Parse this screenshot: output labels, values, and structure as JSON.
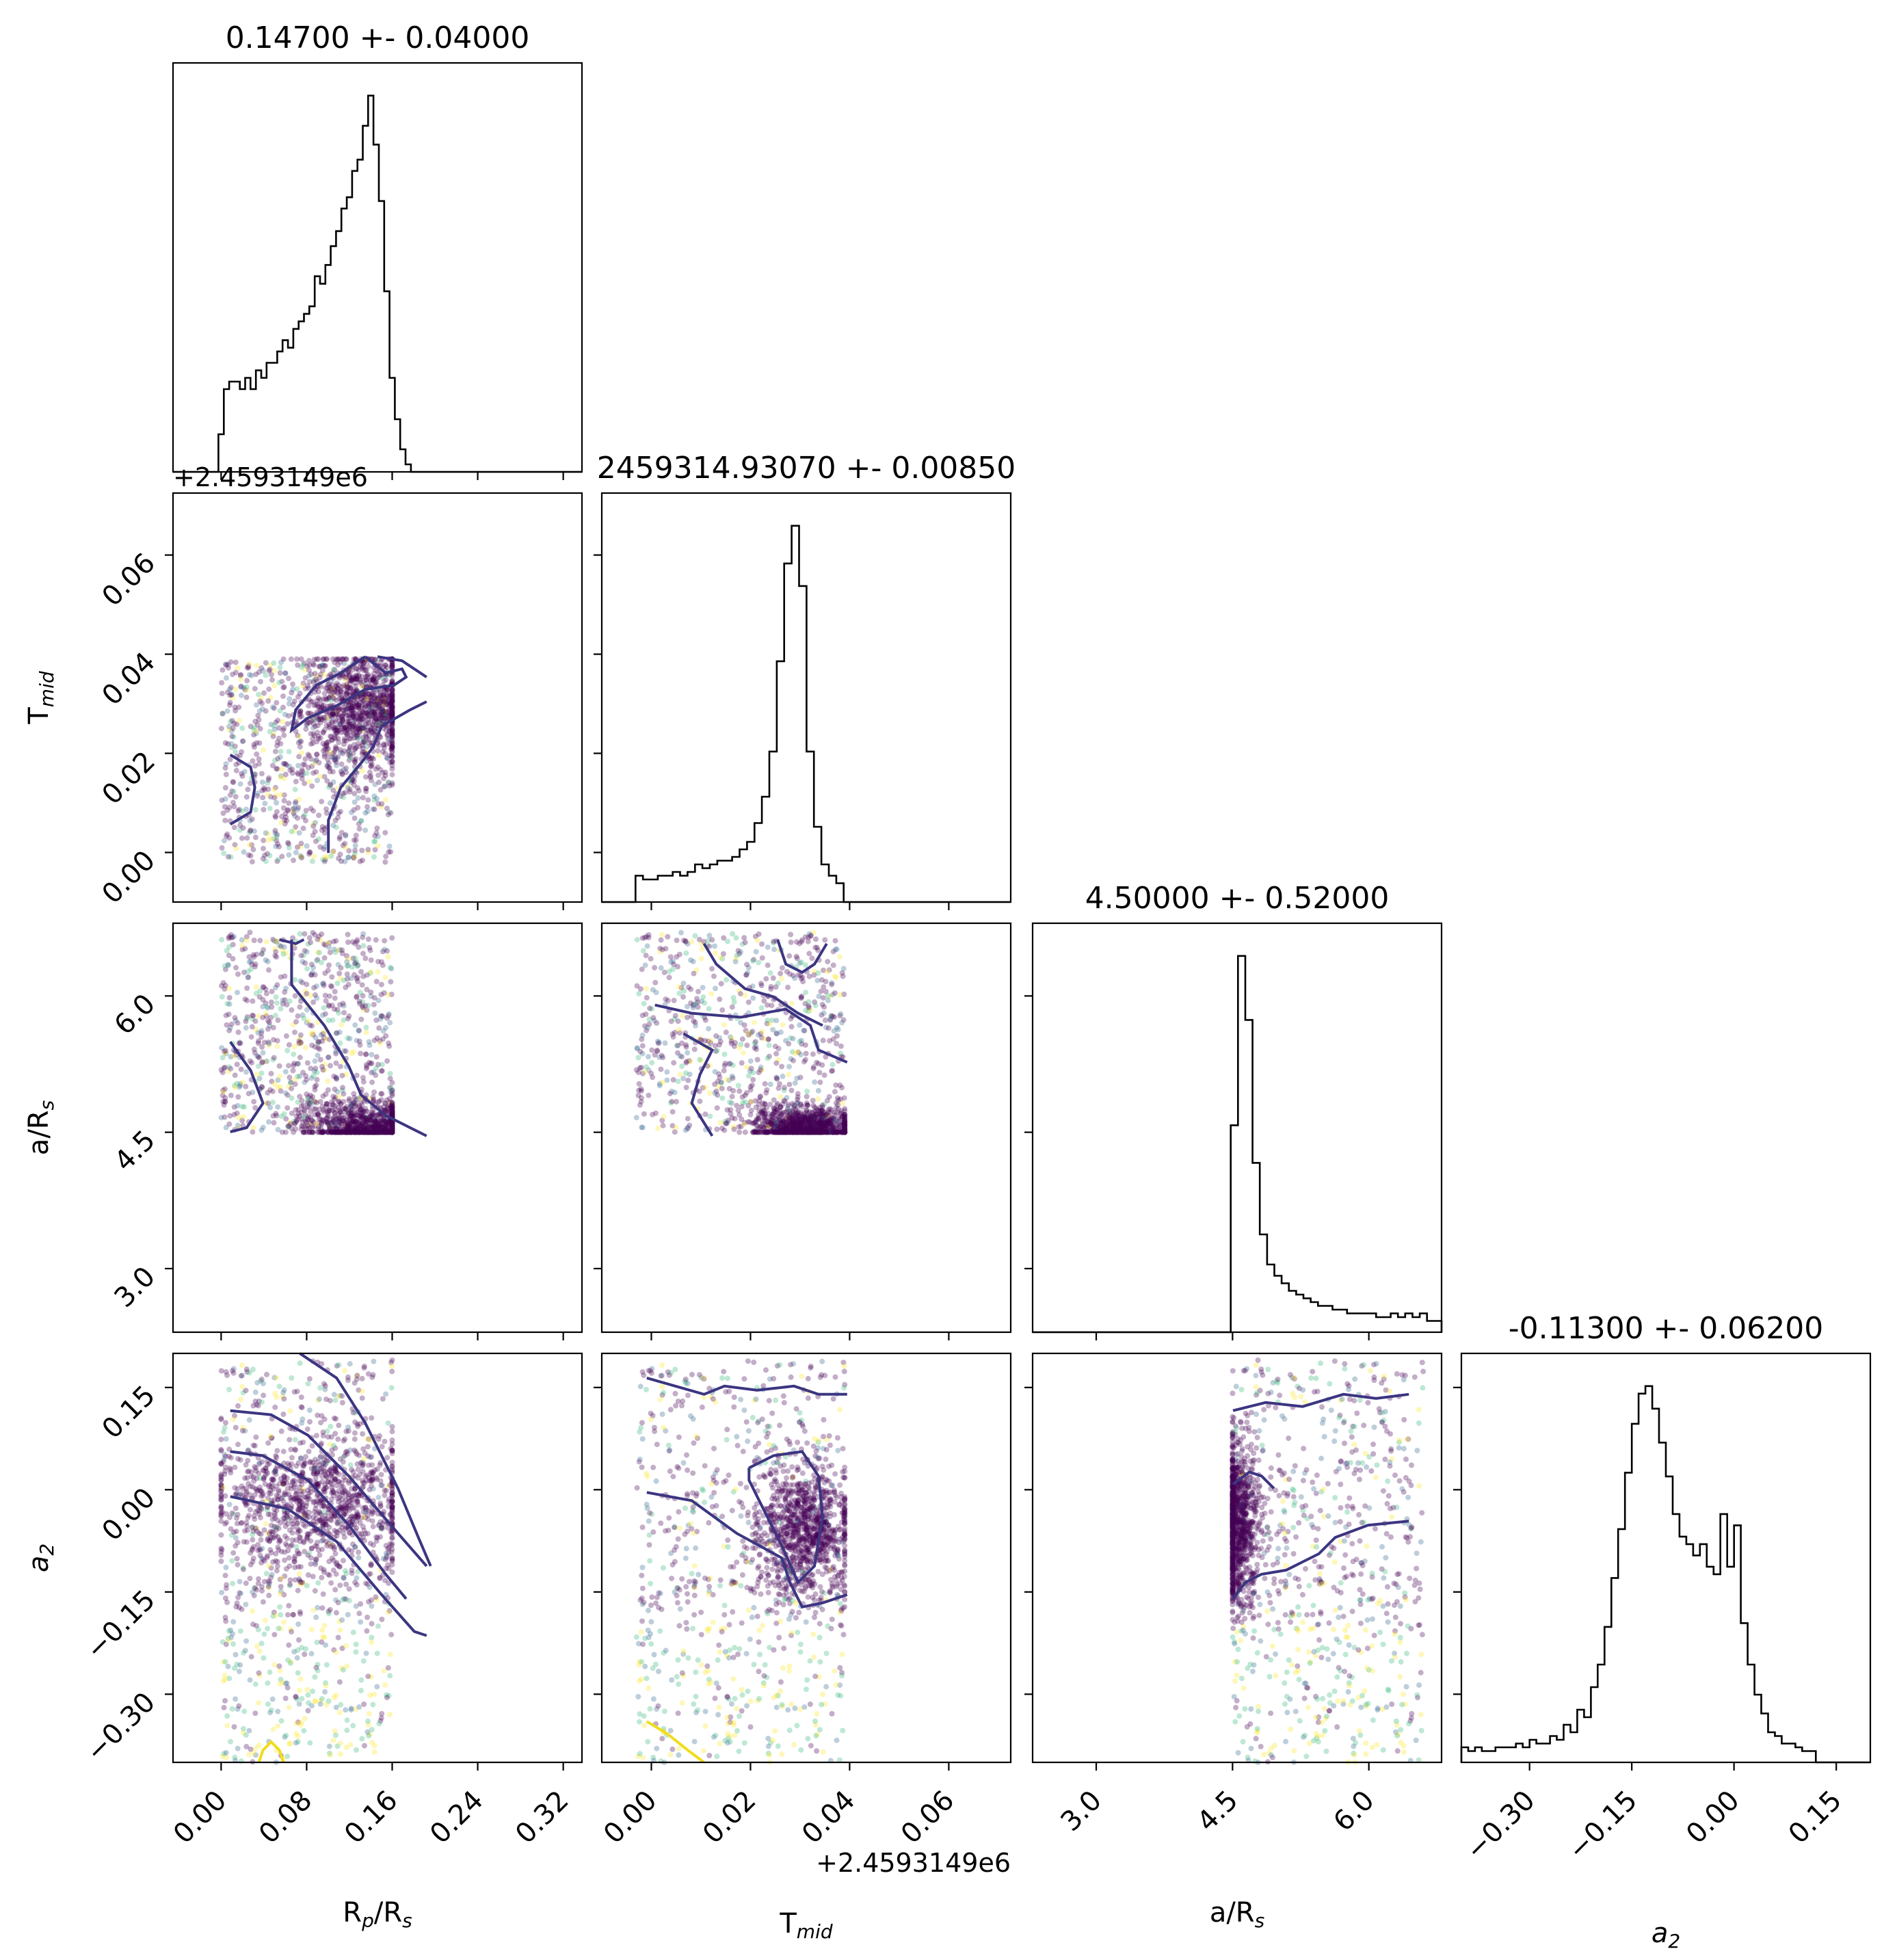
{
  "figure": {
    "type": "corner_plot",
    "background": "#ffffff",
    "offset_label": "+2.4593149e6"
  },
  "parameters": [
    {
      "name": "R_p/R_s",
      "label_main": "R",
      "label_sub": "p",
      "label_mid": "/R",
      "label_sub2": "s",
      "title": "0.14700 +- 0.04000",
      "range": [
        -0.045,
        0.3375
      ],
      "ticks": [
        0.0,
        0.08,
        0.16,
        0.24,
        0.32
      ],
      "tick_labels": [
        "0.00",
        "0.08",
        "0.16",
        "0.24",
        "0.32"
      ]
    },
    {
      "name": "T_mid",
      "label_main": "T",
      "label_sub": "mid",
      "title": "2459314.93070 +- 0.00850",
      "range": [
        -0.01,
        0.0725
      ],
      "ticks": [
        0.0,
        0.02,
        0.04,
        0.06
      ],
      "tick_labels": [
        "0.00",
        "0.02",
        "0.04",
        "0.06"
      ],
      "offset_label": "+2.4593149e6"
    },
    {
      "name": "a/R_s",
      "label_main": "a/R",
      "label_sub": "s",
      "title": "4.50000 +- 0.52000",
      "range": [
        2.3,
        6.8
      ],
      "ticks": [
        3.0,
        4.5,
        6.0
      ],
      "tick_labels": [
        "3.0",
        "4.5",
        "6.0"
      ]
    },
    {
      "name": "a_2",
      "label_main": "a",
      "label_sub": "2",
      "title": "-0.11300 +- 0.06200",
      "range": [
        -0.4,
        0.2
      ],
      "ticks": [
        -0.3,
        -0.15,
        0.0,
        0.15
      ],
      "tick_labels": [
        "−0.30",
        "−0.15",
        "0.00",
        "0.15"
      ]
    }
  ],
  "chart_data": {
    "type": "scatter",
    "subtype": "corner",
    "colormap": [
      "#440154",
      "#31688e",
      "#35b779",
      "#fde725"
    ],
    "contour_color": "#3b3581",
    "low_contour_color": "#f0dc1a",
    "hist_color": "#000000",
    "histograms": [
      {
        "param": "R_p/R_s",
        "bin_width": 0.005,
        "bin_start": -0.0025,
        "counts": [
          0.1,
          0.22,
          0.24,
          0.24,
          0.22,
          0.25,
          0.22,
          0.27,
          0.25,
          0.29,
          0.29,
          0.32,
          0.35,
          0.33,
          0.38,
          0.4,
          0.42,
          0.44,
          0.52,
          0.5,
          0.55,
          0.6,
          0.64,
          0.7,
          0.73,
          0.8,
          0.83,
          0.92,
          1.0,
          0.87,
          0.72,
          0.48,
          0.25,
          0.14,
          0.06,
          0.02
        ]
      },
      {
        "param": "T_mid",
        "bin_width": 0.0015,
        "bin_start": -0.0032,
        "counts": [
          0.07,
          0.06,
          0.06,
          0.07,
          0.07,
          0.08,
          0.07,
          0.08,
          0.1,
          0.09,
          0.1,
          0.11,
          0.11,
          0.12,
          0.14,
          0.16,
          0.21,
          0.28,
          0.4,
          0.64,
          0.9,
          1.0,
          0.84,
          0.4,
          0.2,
          0.1,
          0.07,
          0.05
        ]
      },
      {
        "param": "a/R_s",
        "bin_width": 0.08,
        "bin_start": 4.48,
        "counts": [
          0.55,
          1.0,
          0.83,
          0.45,
          0.26,
          0.18,
          0.15,
          0.13,
          0.11,
          0.1,
          0.09,
          0.08,
          0.07,
          0.07,
          0.06,
          0.06,
          0.05,
          0.05,
          0.05,
          0.05,
          0.04,
          0.04,
          0.05,
          0.04,
          0.05,
          0.04,
          0.05,
          0.03,
          0.03
        ]
      },
      {
        "param": "a_2",
        "bin_width": 0.01,
        "bin_start": -0.4,
        "counts": [
          0.04,
          0.03,
          0.04,
          0.03,
          0.03,
          0.04,
          0.04,
          0.04,
          0.05,
          0.04,
          0.06,
          0.05,
          0.05,
          0.07,
          0.06,
          0.1,
          0.08,
          0.14,
          0.12,
          0.2,
          0.26,
          0.36,
          0.49,
          0.62,
          0.77,
          0.9,
          0.98,
          1.0,
          0.94,
          0.85,
          0.76,
          0.66,
          0.6,
          0.58,
          0.55,
          0.58,
          0.52,
          0.5,
          0.66,
          0.52,
          0.63,
          0.37,
          0.26,
          0.18,
          0.13,
          0.08,
          0.07,
          0.05,
          0.05,
          0.04,
          0.03,
          0.03
        ]
      }
    ],
    "scatter_panels": [
      {
        "x": "R_p/R_s",
        "y": "T_mid",
        "x_range": [
          0.0,
          0.16
        ],
        "y_range": [
          -0.002,
          0.039
        ],
        "peak": [
          0.13,
          0.029
        ],
        "peak_spread": [
          0.028,
          0.006
        ]
      },
      {
        "x": "R_p/R_s",
        "y": "a/R_s",
        "x_range": [
          0.0,
          0.16
        ],
        "y_range": [
          4.5,
          6.7
        ],
        "peak": [
          0.14,
          4.55
        ],
        "peak_spread": [
          0.03,
          0.15
        ]
      },
      {
        "x": "T_mid",
        "y": "a/R_s",
        "x_range": [
          -0.003,
          0.039
        ],
        "y_range": [
          4.5,
          6.7
        ],
        "peak": [
          0.031,
          4.55
        ],
        "peak_spread": [
          0.005,
          0.12
        ]
      },
      {
        "x": "R_p/R_s",
        "y": "a_2",
        "x_range": [
          0.0,
          0.16
        ],
        "y_range": [
          -0.4,
          0.19
        ],
        "peak": [
          0.09,
          -0.02
        ],
        "peak_spread": [
          0.05,
          0.05
        ]
      },
      {
        "x": "T_mid",
        "y": "a_2",
        "x_range": [
          -0.003,
          0.039
        ],
        "y_range": [
          -0.4,
          0.19
        ],
        "peak": [
          0.031,
          -0.06
        ],
        "peak_spread": [
          0.005,
          0.05
        ]
      },
      {
        "x": "a/R_s",
        "y": "a_2",
        "x_range": [
          4.5,
          6.6
        ],
        "y_range": [
          -0.4,
          0.19
        ],
        "peak": [
          4.55,
          -0.05
        ],
        "peak_spread": [
          0.12,
          0.06
        ]
      }
    ]
  }
}
